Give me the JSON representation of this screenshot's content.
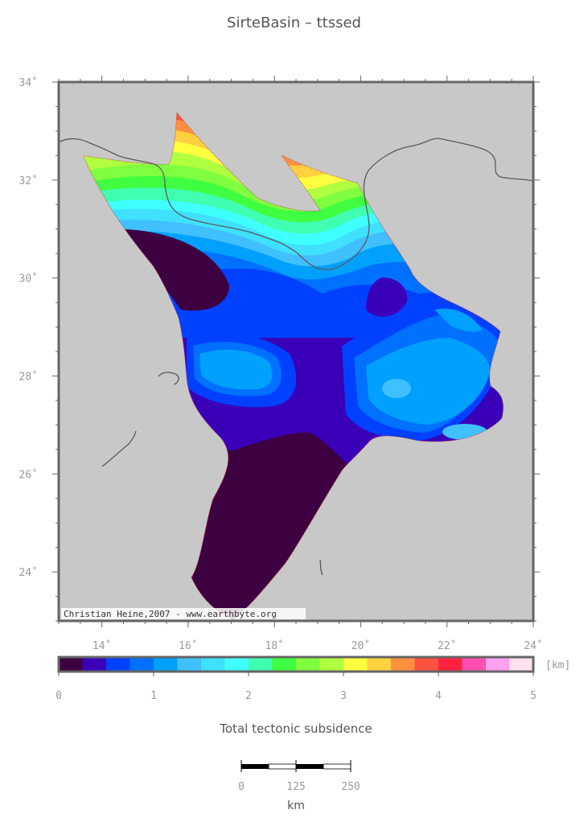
{
  "title": "SirteBasin – ttssed",
  "map": {
    "lat_ticks": [
      {
        "lat": 34,
        "label": "34˚"
      },
      {
        "lat": 32,
        "label": "32˚"
      },
      {
        "lat": 30,
        "label": "30˚"
      },
      {
        "lat": 28,
        "label": "28˚"
      },
      {
        "lat": 26,
        "label": "26˚"
      },
      {
        "lat": 24,
        "label": "24˚"
      }
    ],
    "lon_ticks": [
      {
        "lon": 14,
        "label": "14˚"
      },
      {
        "lon": 16,
        "label": "16˚"
      },
      {
        "lon": 18,
        "label": "18˚"
      },
      {
        "lon": 20,
        "label": "20˚"
      },
      {
        "lon": 22,
        "label": "22˚"
      },
      {
        "lon": 24,
        "label": "24˚"
      }
    ],
    "credit": "Christian Heine,2007 - www.earthbyte.org",
    "land_color": "#c8c8c8",
    "coastline_color": "#5a5a5a"
  },
  "colorbar": {
    "unit": "[km]",
    "tick_labels": [
      "0",
      "1",
      "2",
      "3",
      "4",
      "5"
    ],
    "colors": [
      "#3d0040",
      "#3a00b8",
      "#0040ff",
      "#0070ff",
      "#00a0ff",
      "#40c0ff",
      "#40e0ff",
      "#40ffff",
      "#40ffb0",
      "#40ff40",
      "#80ff40",
      "#b0ff40",
      "#ffff40",
      "#ffd040",
      "#ff9040",
      "#ff5040",
      "#ff2040",
      "#ff50b0",
      "#ffa0f0",
      "#ffe0f0"
    ],
    "caption": "Total tectonic subsidence"
  },
  "scalebar": {
    "labels": [
      "0",
      "125",
      "250"
    ],
    "unit": "km"
  }
}
